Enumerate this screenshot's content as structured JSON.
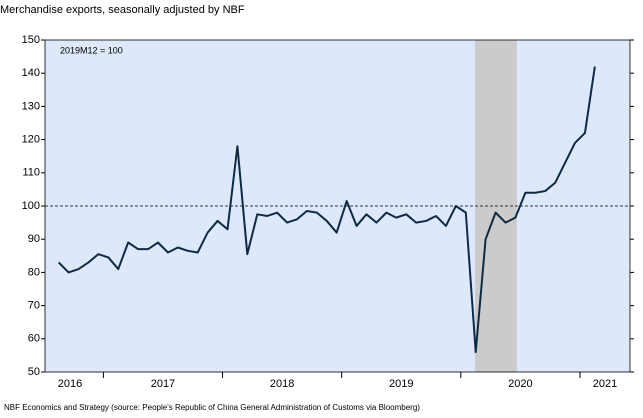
{
  "chart_data": {
    "type": "line",
    "subtitle": "Merchandise exports, seasonally adjusted by NBF",
    "annotation": "2019M12 = 100",
    "footer": "NBF Economics and Strategy (source: People's Republic of China General Administration of Customs via Bloomberg)",
    "x": [
      2016.625,
      2016.708,
      2016.792,
      2016.875,
      2016.958,
      2017.042,
      2017.125,
      2017.208,
      2017.292,
      2017.375,
      2017.458,
      2017.542,
      2017.625,
      2017.708,
      2017.792,
      2017.875,
      2017.958,
      2018.042,
      2018.125,
      2018.208,
      2018.292,
      2018.375,
      2018.458,
      2018.542,
      2018.625,
      2018.708,
      2018.792,
      2018.875,
      2018.958,
      2019.042,
      2019.125,
      2019.208,
      2019.292,
      2019.375,
      2019.458,
      2019.542,
      2019.625,
      2019.708,
      2019.792,
      2019.875,
      2019.958,
      2020.042,
      2020.125,
      2020.208,
      2020.292,
      2020.375,
      2020.458,
      2020.542,
      2020.625,
      2020.708,
      2020.792,
      2020.875,
      2020.958,
      2021.042,
      2021.125
    ],
    "series": [
      {
        "name": "Merchandise exports",
        "color": "#0d2b45",
        "values": [
          83,
          80,
          81,
          83,
          85.5,
          84.5,
          81,
          89,
          87,
          87,
          89,
          86,
          87.5,
          86.5,
          86,
          92,
          95.5,
          93,
          118,
          85.5,
          97.5,
          97,
          98,
          95,
          96,
          98.5,
          98,
          95.5,
          92,
          101.5,
          94,
          97.5,
          95,
          98,
          96.5,
          97.5,
          95,
          95.5,
          97,
          94,
          100,
          98,
          56,
          90,
          98,
          95,
          96.5,
          104,
          104,
          104.5,
          107,
          113,
          119,
          122,
          142
        ]
      }
    ],
    "xlim": [
      2016.51,
      2021.42
    ],
    "ylim": [
      50,
      150
    ],
    "yticks": [
      50,
      60,
      70,
      80,
      90,
      100,
      110,
      120,
      130,
      140,
      150
    ],
    "xticks": [
      {
        "value": 2016.72,
        "label": "2016"
      },
      {
        "value": 2017.5,
        "label": "2017"
      },
      {
        "value": 2018.5,
        "label": "2018"
      },
      {
        "value": 2019.5,
        "label": "2019"
      },
      {
        "value": 2020.5,
        "label": "2020"
      },
      {
        "value": 2021.21,
        "label": "2021"
      }
    ],
    "xminor": [
      2017,
      2018,
      2019,
      2020,
      2021
    ],
    "hline": 100,
    "shade": [
      2020.12,
      2020.47
    ],
    "background": "#dde9fb",
    "shade_color": "#cbcbcb"
  }
}
